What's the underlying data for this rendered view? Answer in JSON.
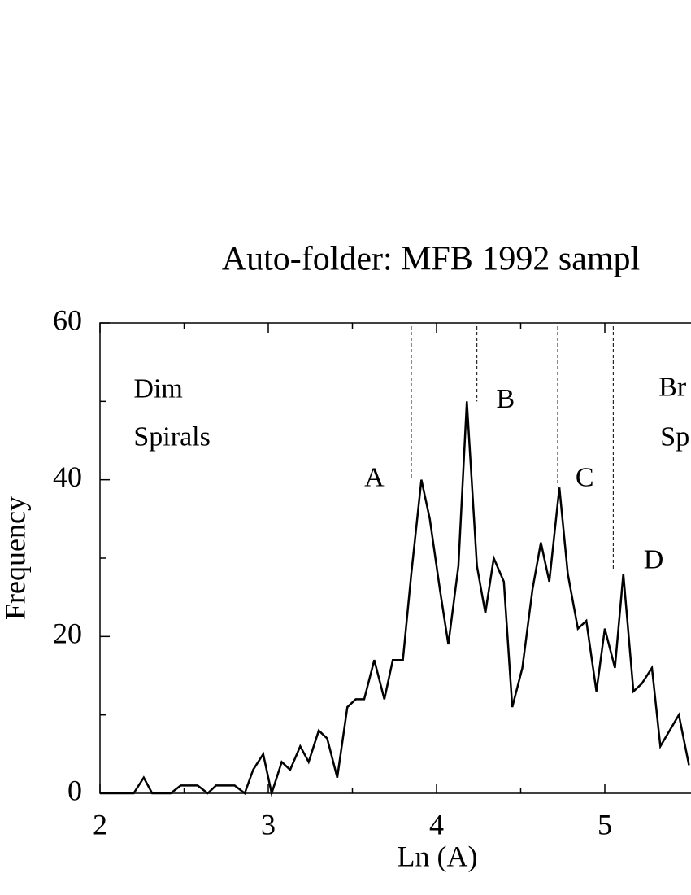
{
  "chart_data": {
    "type": "line",
    "title": "Auto-folder: MFB 1992 sampl",
    "xlabel": "Ln (A)",
    "ylabel": "Frequency",
    "x": [
      2.0,
      2.2,
      2.26,
      2.31,
      2.42,
      2.48,
      2.58,
      2.64,
      2.69,
      2.8,
      2.86,
      2.91,
      2.97,
      3.02,
      3.08,
      3.13,
      3.19,
      3.24,
      3.3,
      3.35,
      3.41,
      3.47,
      3.52,
      3.57,
      3.63,
      3.69,
      3.74,
      3.8,
      3.85,
      3.91,
      3.96,
      4.02,
      4.07,
      4.13,
      4.18,
      4.24,
      4.29,
      4.34,
      4.4,
      4.45,
      4.51,
      4.57,
      4.62,
      4.67,
      4.73,
      4.78,
      4.84,
      4.89,
      4.95,
      5.0,
      5.06,
      5.11,
      5.17,
      5.22,
      5.28,
      5.33,
      5.44,
      5.5
    ],
    "series": [
      {
        "color": "#000000",
        "values": [
          0,
          0,
          2,
          0,
          0,
          1,
          1,
          0,
          1,
          1,
          0,
          3,
          5,
          0,
          4,
          3,
          6,
          4,
          8,
          7,
          2,
          11,
          12,
          12,
          17,
          12,
          17,
          17,
          28,
          40,
          35,
          26,
          19,
          29,
          50,
          29,
          23,
          30,
          27,
          11,
          16,
          26,
          32,
          27,
          39,
          28,
          21,
          22,
          13,
          21,
          16,
          28,
          13,
          14,
          16,
          6,
          10,
          3.6
        ]
      }
    ],
    "xlim": [
      2,
      5.5
    ],
    "ylim": [
      0,
      60
    ],
    "xticks": [
      2,
      3,
      4,
      5
    ],
    "yticks": [
      0,
      20,
      40,
      60
    ],
    "xminor": [
      2.5,
      3.5,
      4.5
    ],
    "yminor": [
      10,
      30,
      50
    ],
    "markers": [
      {
        "label": "A",
        "x": 3.85,
        "y": 40,
        "label_x": 3.63,
        "label_y": 40
      },
      {
        "label": "B",
        "x": 4.24,
        "y": 50,
        "label_x": 4.41,
        "label_y": 50
      },
      {
        "label": "C",
        "x": 4.72,
        "y": 39.2,
        "label_x": 4.88,
        "label_y": 40
      },
      {
        "label": "D",
        "x": 5.05,
        "y": 28.5,
        "label_x": 5.29,
        "label_y": 29.5
      }
    ],
    "notes": [
      {
        "text": "Dim",
        "x": 2.2,
        "y": 51.3
      },
      {
        "text": "Spirals",
        "x": 2.2,
        "y": 45.2
      },
      {
        "text": "Br",
        "x": 5.32,
        "y": 51.5
      },
      {
        "text": "Sp",
        "x": 5.33,
        "y": 45.2
      }
    ]
  }
}
